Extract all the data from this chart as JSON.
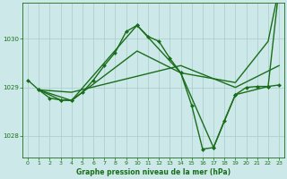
{
  "background_color": "#cce8e8",
  "grid_color": "#aacccc",
  "line_color": "#1a6e1a",
  "title": "Graphe pression niveau de la mer (hPa)",
  "xlim": [
    -0.5,
    23.5
  ],
  "ylim": [
    1027.55,
    1030.75
  ],
  "yticks": [
    1028,
    1029,
    1030
  ],
  "xticks": [
    0,
    1,
    2,
    3,
    4,
    5,
    6,
    7,
    8,
    9,
    10,
    11,
    12,
    13,
    14,
    15,
    16,
    17,
    18,
    19,
    20,
    21,
    22,
    23
  ],
  "series": [
    {
      "x": [
        0,
        1,
        2,
        3,
        4,
        5,
        6,
        7,
        8,
        9,
        10,
        11,
        12,
        13,
        14,
        15,
        16,
        17,
        18,
        19,
        20,
        21,
        22,
        23
      ],
      "y": [
        1029.15,
        1028.95,
        1028.78,
        1028.74,
        1028.73,
        1028.9,
        1029.15,
        1029.45,
        1029.72,
        1030.15,
        1030.28,
        1030.05,
        1029.95,
        1029.6,
        1029.3,
        1028.63,
        1027.73,
        1027.76,
        1028.32,
        1028.85,
        1029.0,
        1029.02,
        1029.02,
        1029.05
      ],
      "marker": "D",
      "markersize": 2.0,
      "linewidth": 1.0,
      "with_marker": true
    },
    {
      "x": [
        1,
        3,
        4,
        10,
        14,
        17,
        19,
        22,
        23
      ],
      "y": [
        1028.95,
        1028.74,
        1028.73,
        1030.28,
        1029.3,
        1027.76,
        1028.85,
        1029.02,
        1031.05
      ],
      "marker": "D",
      "markersize": 2.0,
      "linewidth": 1.0,
      "with_marker": true
    },
    {
      "x": [
        1,
        4,
        10,
        14,
        19,
        22,
        23
      ],
      "y": [
        1028.95,
        1028.73,
        1029.75,
        1029.3,
        1029.1,
        1029.95,
        1031.05
      ],
      "marker": null,
      "markersize": 0,
      "linewidth": 1.0,
      "with_marker": false
    },
    {
      "x": [
        1,
        4,
        14,
        19,
        23
      ],
      "y": [
        1028.95,
        1028.9,
        1029.45,
        1029.0,
        1029.45
      ],
      "marker": null,
      "markersize": 0,
      "linewidth": 1.0,
      "with_marker": false
    }
  ]
}
